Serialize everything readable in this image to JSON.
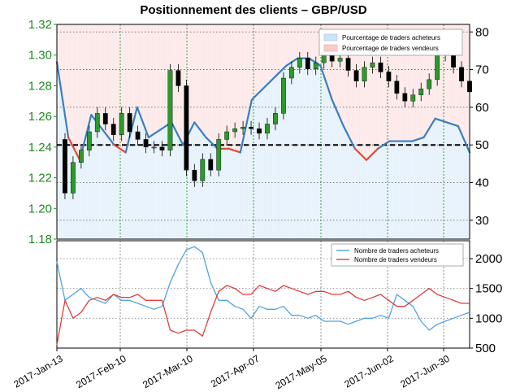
{
  "title": "Positionnement des clients – GBP/USD",
  "chart_data": [
    {
      "type": "line",
      "panel": "top",
      "title": "Positionnement des clients – GBP/USD",
      "left_axis": {
        "ticks": [
          "1.18",
          "1.20",
          "1.22",
          "1.24",
          "1.26",
          "1.28",
          "1.30",
          "1.32"
        ],
        "range": [
          1.18,
          1.32
        ],
        "color": "#1f8a1f"
      },
      "right_axis": {
        "ticks": [
          "30",
          "40",
          "50",
          "60",
          "70",
          "80"
        ],
        "range": [
          25,
          82
        ]
      },
      "x_ticks": [
        "2017-Jan-13",
        "2017-Feb-10",
        "2017-Mar-10",
        "2017-Apr-07",
        "2017-May-05",
        "2017-Jun-02",
        "2017-Jun-30"
      ],
      "reference_line": 50,
      "legend": {
        "position": "top-right",
        "items": [
          {
            "label": "Pourcentage de traders acheteurs",
            "color": "#cde3f6"
          },
          {
            "label": "Pourcentage de traders vendeurs",
            "color": "#f8cccc"
          }
        ]
      },
      "long_pct": [
        72,
        52,
        46,
        58,
        54,
        50,
        48,
        60,
        52,
        54,
        56,
        50,
        56,
        52,
        49,
        49,
        48,
        62,
        65,
        68,
        71,
        73,
        73,
        71,
        62,
        55,
        49,
        46,
        49,
        51,
        51,
        51,
        52,
        57,
        56,
        55,
        48
      ],
      "short_pct": [
        28,
        48,
        54,
        42,
        46,
        50,
        52,
        40,
        48,
        46,
        44,
        50,
        44,
        48,
        51,
        51,
        52,
        38,
        35,
        32,
        29,
        27,
        27,
        29,
        38,
        45,
        51,
        54,
        51,
        49,
        49,
        49,
        48,
        43,
        44,
        45,
        52
      ],
      "price": [
        1.245,
        1.21,
        1.23,
        1.238,
        1.25,
        1.262,
        1.255,
        1.248,
        1.262,
        1.25,
        1.245,
        1.24,
        1.24,
        1.238,
        1.29,
        1.28,
        1.225,
        1.218,
        1.232,
        1.225,
        1.245,
        1.25,
        1.252,
        1.253,
        1.252,
        1.249,
        1.255,
        1.262,
        1.285,
        1.292,
        1.298,
        1.291,
        1.295,
        1.3,
        1.296,
        1.298,
        1.29,
        1.283,
        1.292,
        1.295,
        1.289,
        1.283,
        1.275,
        1.27,
        1.274,
        1.278,
        1.284,
        1.3,
        1.302,
        1.292,
        1.283,
        1.276
      ]
    },
    {
      "type": "line",
      "panel": "bottom",
      "right_axis": {
        "ticks": [
          "500",
          "1000",
          "1500",
          "2000"
        ],
        "range": [
          500,
          2300
        ]
      },
      "legend": {
        "position": "top-right"
      },
      "series": [
        {
          "name": "Nombre de traders acheteurs",
          "color": "#4fa3e8",
          "values": [
            1950,
            1300,
            1400,
            1500,
            1350,
            1300,
            1250,
            1400,
            1300,
            1300,
            1250,
            1200,
            1150,
            1200,
            1600,
            1900,
            2150,
            2200,
            2100,
            1600,
            1300,
            1300,
            1200,
            1150,
            1000,
            1200,
            1150,
            1150,
            1200,
            1050,
            1050,
            1000,
            1050,
            950,
            950,
            950,
            900,
            950,
            1000,
            1000,
            1050,
            1000,
            1400,
            1300,
            1200,
            950,
            800,
            900,
            950,
            1000,
            1050,
            1100
          ]
        },
        {
          "name": "Nombre de traders vendeurs",
          "color": "#e23c3c",
          "values": [
            550,
            1300,
            1000,
            1100,
            1300,
            1350,
            1300,
            1400,
            1350,
            1350,
            1400,
            1300,
            1300,
            1300,
            800,
            750,
            800,
            800,
            700,
            1100,
            1450,
            1550,
            1500,
            1400,
            1400,
            1550,
            1500,
            1450,
            1550,
            1500,
            1450,
            1400,
            1450,
            1450,
            1400,
            1400,
            1450,
            1350,
            1300,
            1350,
            1400,
            1300,
            1200,
            1200,
            1300,
            1400,
            1500,
            1400,
            1350,
            1300,
            1250,
            1250
          ]
        }
      ]
    }
  ]
}
